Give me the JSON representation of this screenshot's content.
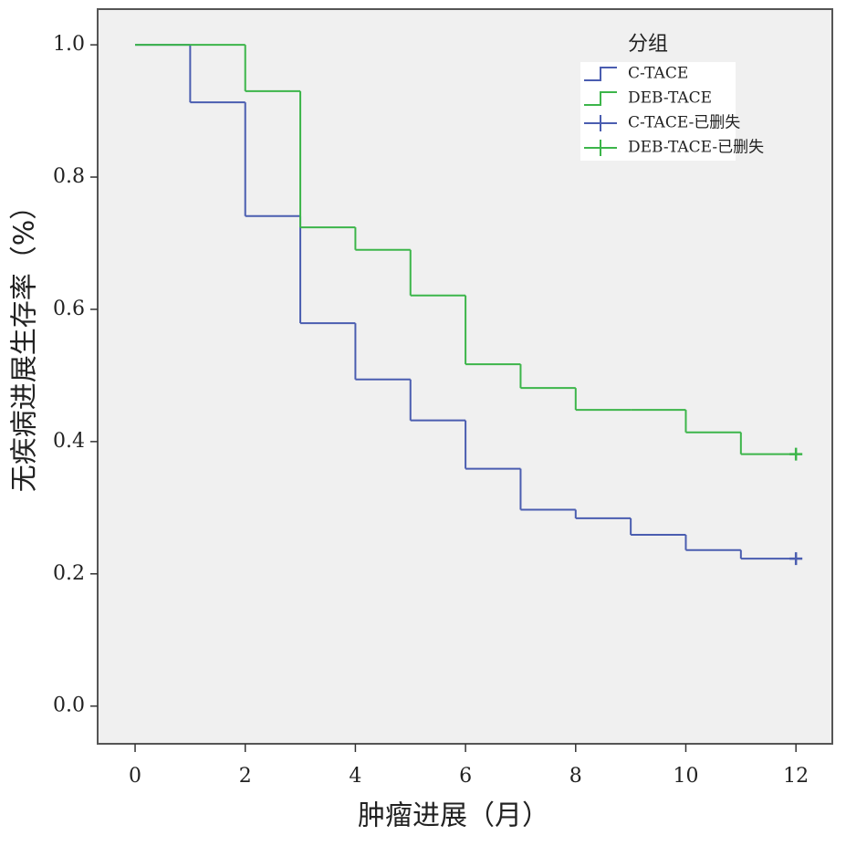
{
  "chart_data": {
    "type": "step",
    "xlabel": "肿瘤进展（月）",
    "ylabel": "无疾病进展生存率（%）",
    "legend_title": "分组",
    "xlim": [
      -0.68,
      12.66
    ],
    "ylim": [
      -0.057,
      1.054
    ],
    "xticks": [
      0,
      2,
      4,
      6,
      8,
      10,
      12
    ],
    "yticks": [
      {
        "value": 0,
        "label": "0.0"
      },
      {
        "value": 0.2,
        "label": "0.2"
      },
      {
        "value": 0.4,
        "label": "0.4"
      },
      {
        "value": 0.6,
        "label": "0.6"
      },
      {
        "value": 0.8,
        "label": "0.8"
      },
      {
        "value": 1,
        "label": "1.0"
      }
    ],
    "series": [
      {
        "name": "C-TACE",
        "color": "#4a5db0",
        "kind": "step",
        "x": [
          0,
          1,
          2,
          3,
          4,
          5,
          6,
          7,
          8,
          9,
          10,
          11,
          12
        ],
        "values": [
          1,
          0.913,
          0.741,
          0.579,
          0.494,
          0.432,
          0.359,
          0.297,
          0.284,
          0.259,
          0.236,
          0.223,
          0.223
        ]
      },
      {
        "name": "DEB-TACE",
        "color": "#3cb54a",
        "kind": "step",
        "x": [
          0,
          1,
          2,
          3,
          4,
          5,
          6,
          7,
          8,
          9,
          10,
          11,
          12
        ],
        "values": [
          1,
          1,
          0.93,
          0.724,
          0.69,
          0.621,
          0.517,
          0.481,
          0.448,
          0.448,
          0.414,
          0.381,
          0.381
        ]
      },
      {
        "name": "C-TACE-已删失",
        "color": "#4a5db0",
        "kind": "censor",
        "x": [
          12
        ],
        "values": [
          0.223
        ]
      },
      {
        "name": "DEB-TACE-已删失",
        "color": "#3cb54a",
        "kind": "censor",
        "x": [
          12
        ],
        "values": [
          0.381
        ]
      }
    ]
  }
}
